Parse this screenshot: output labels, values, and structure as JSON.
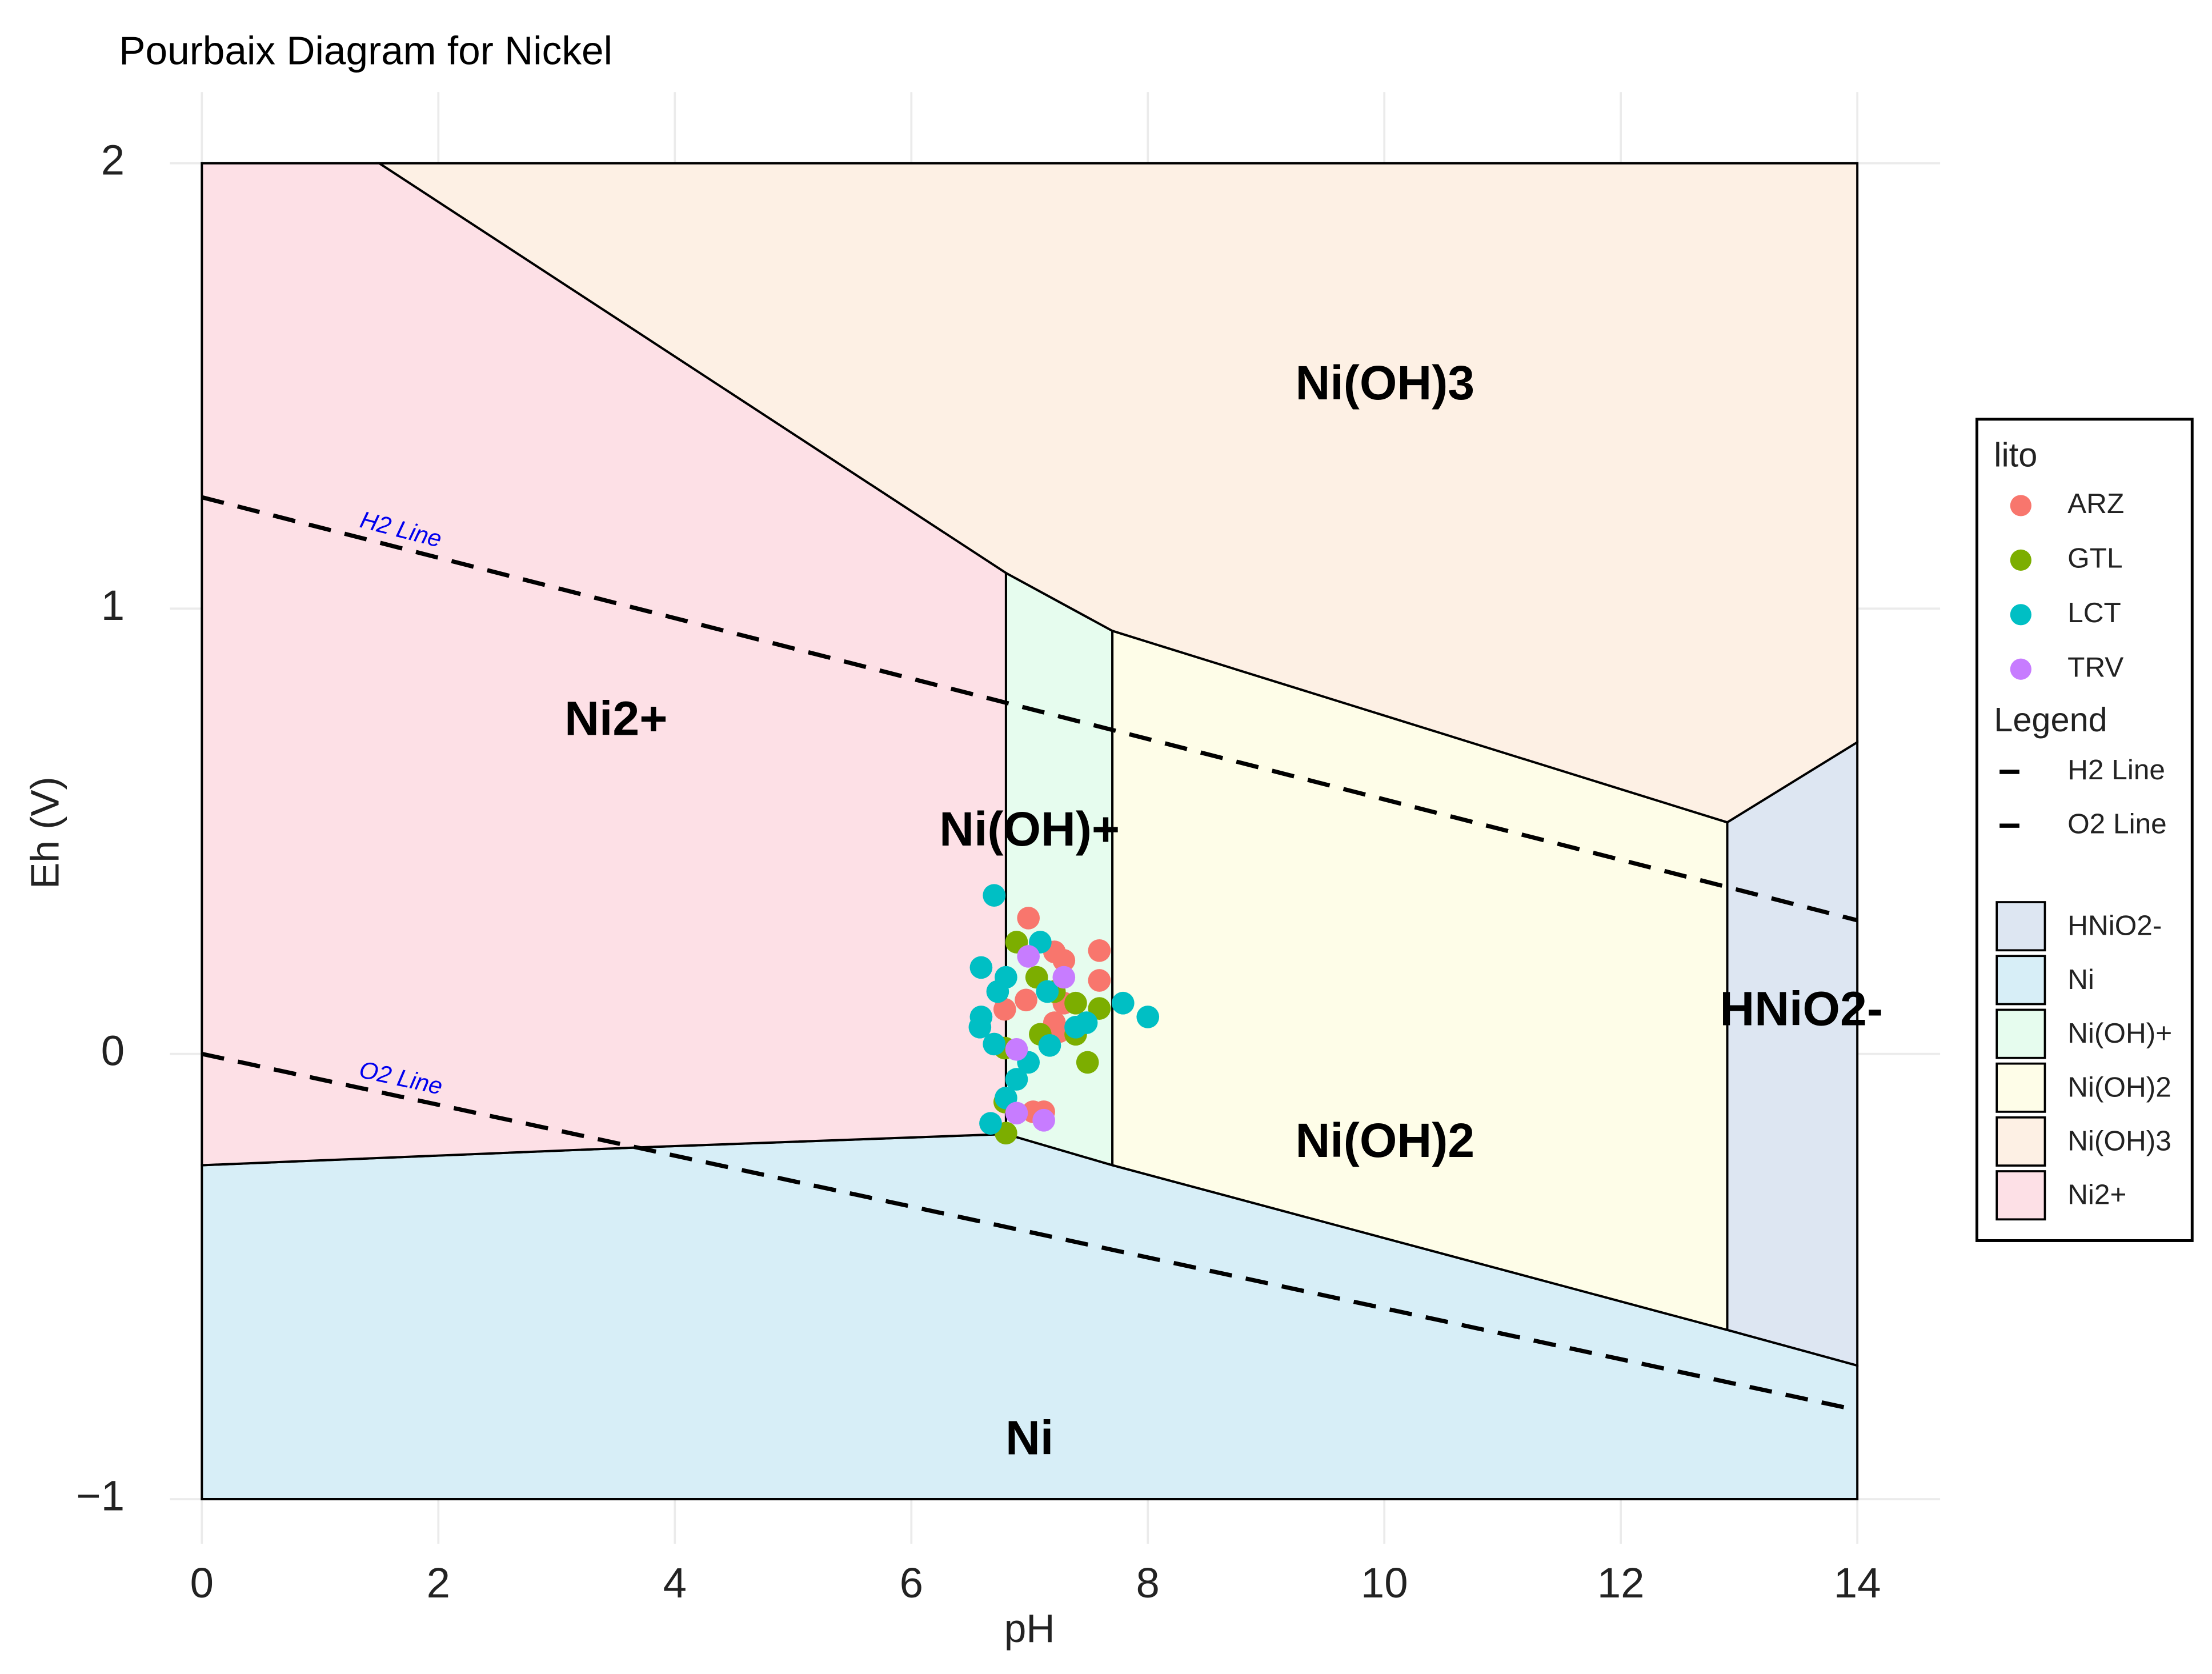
{
  "chart_data": {
    "type": "scatter",
    "title": "Pourbaix Diagram for Nickel",
    "xlabel": "pH",
    "ylabel": "Eh (V)",
    "xlim": [
      -0.27,
      14.7
    ],
    "ylim": [
      -1.1,
      2.16
    ],
    "xticks": [
      0,
      2,
      4,
      6,
      8,
      10,
      12,
      14
    ],
    "yticks": [
      {
        "value": -1,
        "label": "−1"
      },
      0,
      1,
      2
    ],
    "grid": true,
    "legend_position": "right",
    "legend_titles": [
      "lito",
      "Legend"
    ],
    "regions": [
      {
        "name": "HNiO2-",
        "color": "#dde6f2",
        "pH": [
          12.9,
          14,
          14,
          12.9
        ],
        "Eh": [
          0.52,
          0.7,
          -0.7,
          -0.62
        ]
      },
      {
        "name": "Ni",
        "color": "#d7eef7",
        "pH": [
          0,
          3.7,
          6.8,
          7.7,
          12.9,
          14,
          14,
          0
        ],
        "Eh": [
          -0.25,
          -0.21,
          -0.18,
          -0.25,
          -0.62,
          -0.7,
          -1,
          -1
        ]
      },
      {
        "name": "Ni(OH)+",
        "color": "#e6fcee",
        "pH": [
          6.8,
          7.7,
          7.7,
          6.8
        ],
        "Eh": [
          1.08,
          0.95,
          -0.25,
          -0.18
        ]
      },
      {
        "name": "Ni(OH)2",
        "color": "#fefde8",
        "pH": [
          7.7,
          12.9,
          12.9,
          7.7
        ],
        "Eh": [
          0.95,
          0.52,
          -0.62,
          -0.25
        ]
      },
      {
        "name": "Ni(OH)3",
        "color": "#fdf0e4",
        "pH": [
          1.5,
          14,
          14,
          12.9,
          7.7,
          6.8
        ],
        "Eh": [
          2,
          2,
          0.7,
          0.52,
          0.95,
          1.08
        ]
      },
      {
        "name": "Ni2+",
        "color": "#fde0e6",
        "pH": [
          0,
          1.5,
          6.8,
          6.8,
          3.7,
          0
        ],
        "Eh": [
          2,
          2,
          1.08,
          -0.18,
          -0.21,
          -0.25
        ]
      }
    ],
    "lines": [
      {
        "name": "H2 Line",
        "color": "#000000",
        "pH": [
          0,
          14
        ],
        "Eh": [
          1.25,
          0.3
        ]
      },
      {
        "name": "O2 Line",
        "color": "#000000",
        "pH": [
          0,
          14
        ],
        "Eh": [
          0,
          -0.8
        ]
      }
    ],
    "series": [
      {
        "name": "ARZ",
        "color": "#f8766d",
        "x": [
          6.99,
          7.59,
          7.59,
          7.21,
          7.29,
          6.97,
          7.29,
          7.21,
          7.03,
          7.12,
          6.79,
          7.25
        ],
        "y": [
          0.305,
          0.232,
          0.165,
          0.229,
          0.21,
          0.121,
          0.114,
          0.07,
          -0.13,
          -0.13,
          0.1,
          0.05
        ]
      },
      {
        "name": "GTL",
        "color": "#7cae00",
        "x": [
          6.89,
          7.06,
          7.39,
          7.59,
          7.49,
          6.8,
          6.79,
          7.09,
          7.39,
          7.21,
          6.79
        ],
        "y": [
          0.251,
          0.172,
          0.114,
          0.102,
          -0.019,
          -0.178,
          -0.108,
          0.044,
          0.044,
          0.14,
          0.013
        ]
      },
      {
        "name": "LCT",
        "color": "#00bfc4",
        "x": [
          6.7,
          6.59,
          6.8,
          6.59,
          6.7,
          6.89,
          6.8,
          6.67,
          7.09,
          7.17,
          7.48,
          7.79,
          8.0,
          6.99,
          6.73,
          6.58,
          7.15,
          7.39
        ],
        "y": [
          0.356,
          0.194,
          0.172,
          0.083,
          0.022,
          -0.057,
          -0.099,
          -0.156,
          0.251,
          0.019,
          0.07,
          0.114,
          0.083,
          -0.019,
          0.14,
          0.06,
          0.14,
          0.06
        ]
      },
      {
        "name": "TRV",
        "color": "#c77cff",
        "x": [
          6.99,
          7.29,
          6.89,
          6.89,
          7.12
        ],
        "y": [
          0.219,
          0.172,
          0.01,
          -0.133,
          -0.149
        ]
      }
    ]
  }
}
